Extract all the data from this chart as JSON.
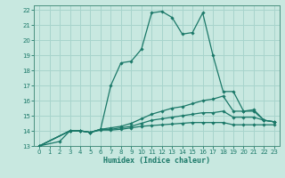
{
  "xlabel": "Humidex (Indice chaleur)",
  "bg_color": "#c8e8e0",
  "grid_color": "#a8d4cc",
  "line_color": "#1a7868",
  "spine_color": "#4a9080",
  "xlim": [
    -0.5,
    23.5
  ],
  "ylim": [
    13,
    22.3
  ],
  "xticks": [
    0,
    1,
    2,
    3,
    4,
    5,
    6,
    7,
    8,
    9,
    10,
    11,
    12,
    13,
    14,
    15,
    16,
    17,
    18,
    19,
    20,
    21,
    22,
    23
  ],
  "yticks": [
    13,
    14,
    15,
    16,
    17,
    18,
    19,
    20,
    21,
    22
  ],
  "tick_labelsize": 5.0,
  "xlabel_fontsize": 6.0,
  "line1_x": [
    0,
    2,
    3,
    4,
    5,
    6,
    7,
    8,
    9,
    10,
    11,
    12,
    13,
    14,
    15,
    16,
    17,
    18,
    19,
    20,
    21,
    22,
    23
  ],
  "line1_y": [
    13,
    13.3,
    14.0,
    14.0,
    13.9,
    14.1,
    17.0,
    18.5,
    18.6,
    19.4,
    21.8,
    21.9,
    21.5,
    20.4,
    20.5,
    21.8,
    19.0,
    16.6,
    16.6,
    15.3,
    15.3,
    14.7,
    14.6
  ],
  "line2_x": [
    0,
    3,
    4,
    5,
    6,
    7,
    8,
    9,
    10,
    11,
    12,
    13,
    14,
    15,
    16,
    17,
    18,
    19,
    20,
    21,
    22,
    23
  ],
  "line2_y": [
    13,
    14.0,
    14.0,
    13.9,
    14.1,
    14.2,
    14.3,
    14.5,
    14.8,
    15.1,
    15.3,
    15.5,
    15.6,
    15.8,
    16.0,
    16.1,
    16.3,
    15.3,
    15.3,
    15.4,
    14.7,
    14.6
  ],
  "line3_x": [
    0,
    3,
    4,
    5,
    6,
    7,
    8,
    9,
    10,
    11,
    12,
    13,
    14,
    15,
    16,
    17,
    18,
    19,
    20,
    21,
    22,
    23
  ],
  "line3_y": [
    13,
    14.0,
    14.0,
    13.9,
    14.1,
    14.1,
    14.2,
    14.3,
    14.5,
    14.7,
    14.8,
    14.9,
    15.0,
    15.1,
    15.2,
    15.2,
    15.3,
    14.9,
    14.9,
    14.9,
    14.7,
    14.6
  ],
  "line4_x": [
    0,
    3,
    4,
    5,
    6,
    7,
    8,
    9,
    10,
    11,
    12,
    13,
    14,
    15,
    16,
    17,
    18,
    19,
    20,
    21,
    22,
    23
  ],
  "line4_y": [
    13,
    14.0,
    14.0,
    13.9,
    14.05,
    14.05,
    14.1,
    14.2,
    14.3,
    14.35,
    14.4,
    14.45,
    14.5,
    14.55,
    14.55,
    14.55,
    14.55,
    14.4,
    14.4,
    14.4,
    14.4,
    14.4
  ]
}
